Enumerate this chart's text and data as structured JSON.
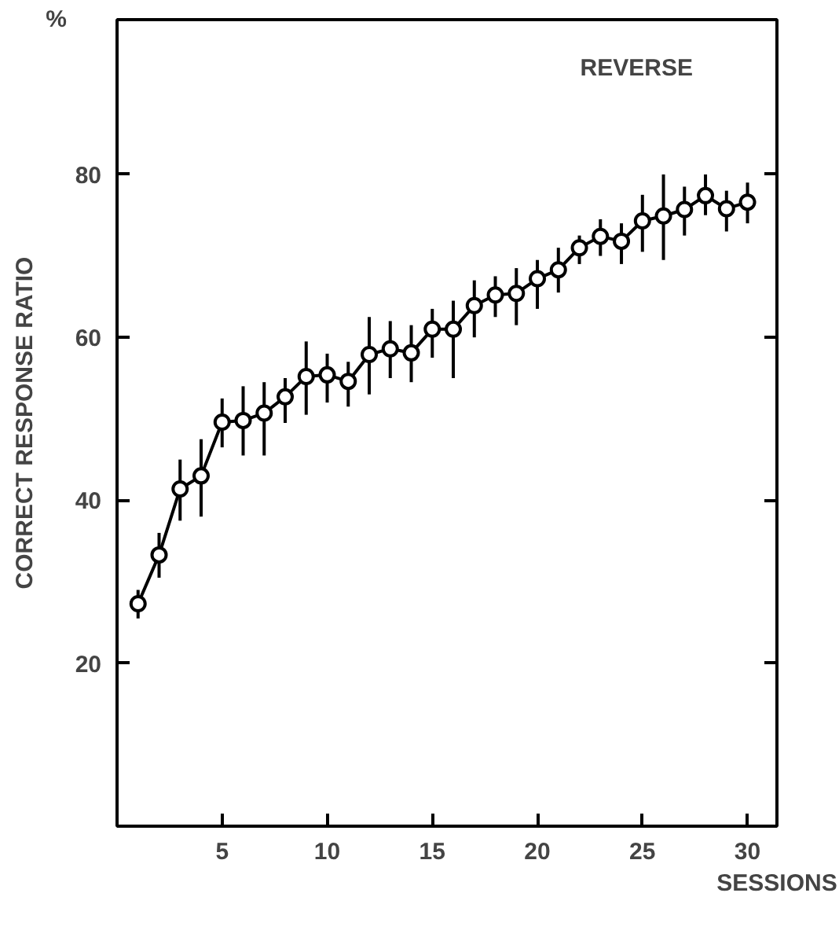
{
  "chart_data": {
    "type": "line",
    "xlabel": "SESSIONS",
    "ylabel": "CORRECT RESPONSE RATIO",
    "annotations": [
      "%",
      "REVERSE"
    ],
    "x": [
      1,
      2,
      3,
      4,
      5,
      6,
      7,
      8,
      9,
      10,
      11,
      12,
      13,
      14,
      15,
      16,
      17,
      18,
      19,
      20,
      21,
      22,
      23,
      24,
      25,
      26,
      27,
      28,
      29,
      30
    ],
    "values": [
      27.3,
      33.3,
      41.4,
      43.0,
      49.6,
      49.8,
      50.7,
      52.7,
      55.2,
      55.4,
      54.6,
      57.9,
      58.6,
      58.1,
      61.0,
      61.0,
      63.9,
      65.2,
      65.4,
      67.2,
      68.3,
      71.0,
      72.4,
      71.8,
      74.3,
      74.9,
      75.7,
      77.4,
      75.8,
      76.6
    ],
    "errors": [
      [
        25.5,
        29
      ],
      [
        30.5,
        36
      ],
      [
        37.5,
        45
      ],
      [
        38,
        47.5
      ],
      [
        46.5,
        52.5
      ],
      [
        45.5,
        54
      ],
      [
        45.5,
        54.5
      ],
      [
        49.5,
        55
      ],
      [
        50.5,
        59.5
      ],
      [
        52,
        58
      ],
      [
        51.5,
        57
      ],
      [
        53,
        62.5
      ],
      [
        55,
        62
      ],
      [
        54.5,
        61.5
      ],
      [
        57.5,
        63.5
      ],
      [
        55,
        64.5
      ],
      [
        60,
        67
      ],
      [
        62.5,
        67.5
      ],
      [
        61.5,
        68.5
      ],
      [
        63.5,
        69.5
      ],
      [
        65.5,
        71
      ],
      [
        69,
        72.5
      ],
      [
        70,
        74.5
      ],
      [
        69,
        74
      ],
      [
        70.5,
        77.5
      ],
      [
        69.5,
        80
      ],
      [
        72.5,
        78.5
      ],
      [
        75,
        80
      ],
      [
        73,
        78
      ],
      [
        74,
        79
      ]
    ],
    "color": "#000000",
    "marker": "circle",
    "line_style": "solid",
    "xlim": [
      0,
      31.4
    ],
    "ylim": [
      0,
      99
    ],
    "xticks": [
      5,
      10,
      15,
      20,
      25,
      30
    ],
    "yticks": [
      20,
      40,
      60,
      80
    ],
    "grid": false
  }
}
